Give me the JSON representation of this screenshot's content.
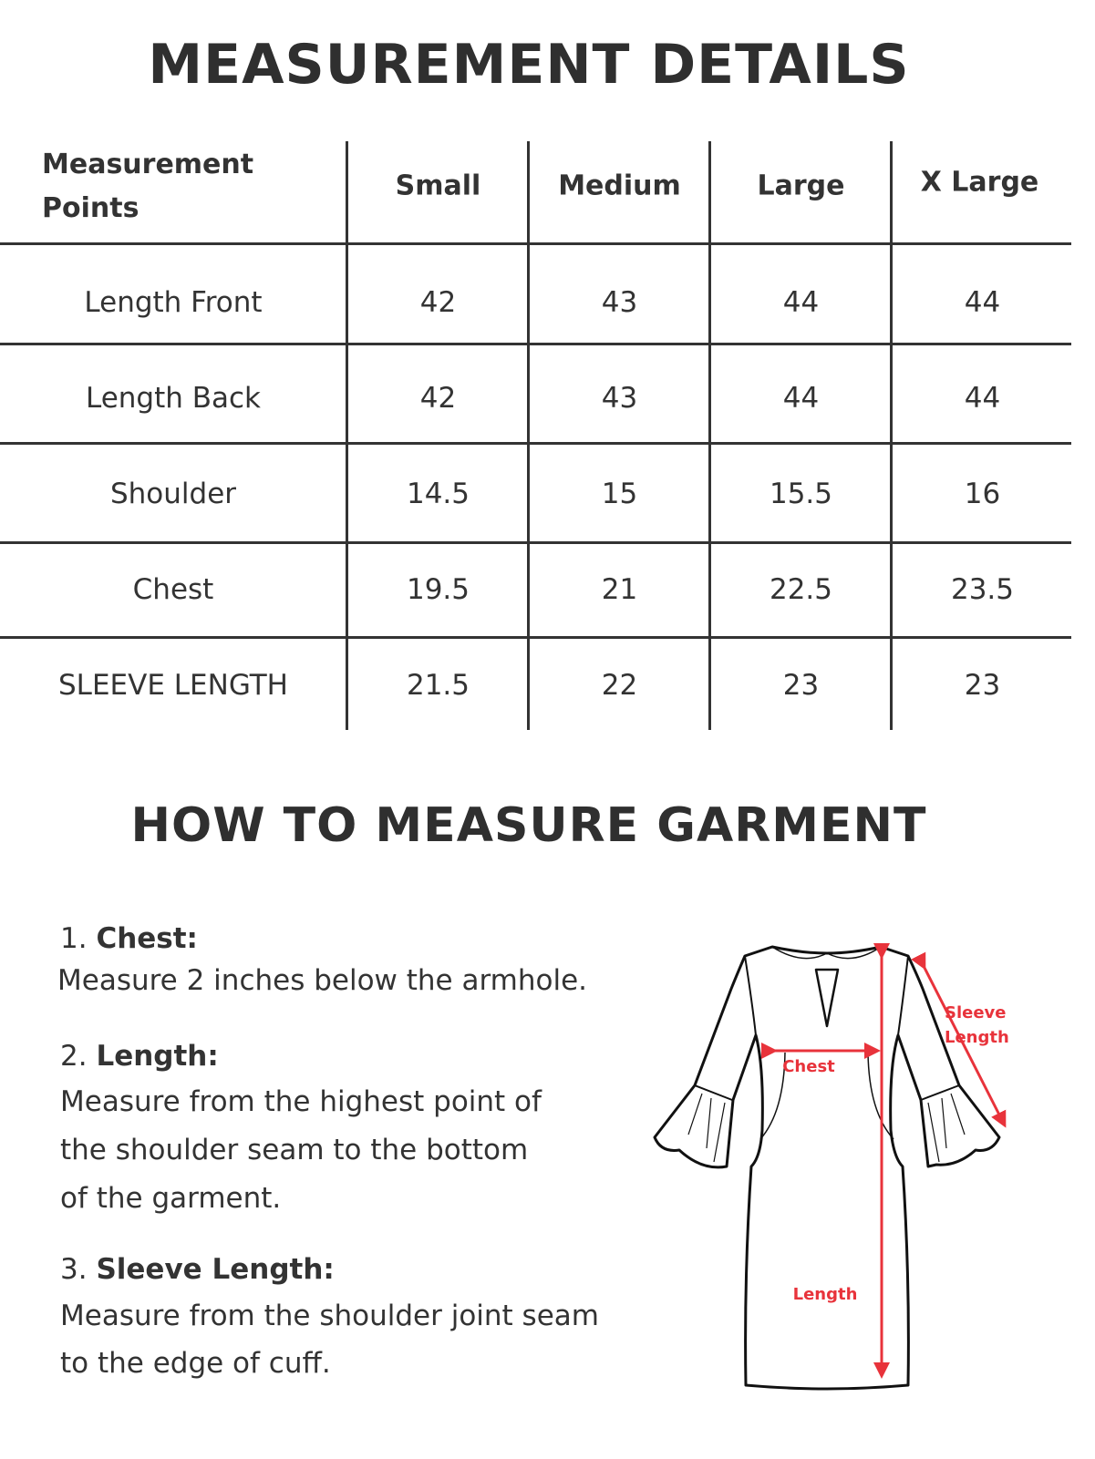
{
  "title": "MEASUREMENT DETAILS",
  "table": {
    "headers": [
      "Measurement Points",
      "Small",
      "Medium",
      "Large",
      "X Large"
    ],
    "header_first_lines": [
      "Measurement",
      "Points"
    ],
    "rows": [
      {
        "label": "Length Front",
        "values": [
          "42",
          "43",
          "44",
          "44"
        ]
      },
      {
        "label": "Length Back",
        "values": [
          "42",
          "43",
          "44",
          "44"
        ]
      },
      {
        "label": "Shoulder",
        "values": [
          "14.5",
          "15",
          "15.5",
          "16"
        ]
      },
      {
        "label": "Chest",
        "values": [
          "19.5",
          "21",
          "22.5",
          "23.5"
        ]
      },
      {
        "label": "SLEEVE LENGTH",
        "values": [
          "21.5",
          "22",
          "23",
          "23"
        ]
      }
    ]
  },
  "how_to": {
    "title": "HOW TO MEASURE GARMENT",
    "steps": [
      {
        "num": "1.",
        "name": "Chest:",
        "lines": [
          "Measure 2 inches  below the armhole."
        ]
      },
      {
        "num": "2.",
        "name": "Length:",
        "lines": [
          "Measure from the highest point of",
          "the shoulder seam to the bottom",
          "of the garment."
        ]
      },
      {
        "num": "3.",
        "name": "Sleeve Length:",
        "lines": [
          "Measure from the shoulder joint seam",
          "to the edge of cuff."
        ]
      }
    ]
  },
  "diagram": {
    "chest_label": "Chest",
    "length_label": "Length",
    "sleeve_label_lines": [
      "Sleeve",
      "Length"
    ],
    "accent_color": "#e8333b"
  }
}
